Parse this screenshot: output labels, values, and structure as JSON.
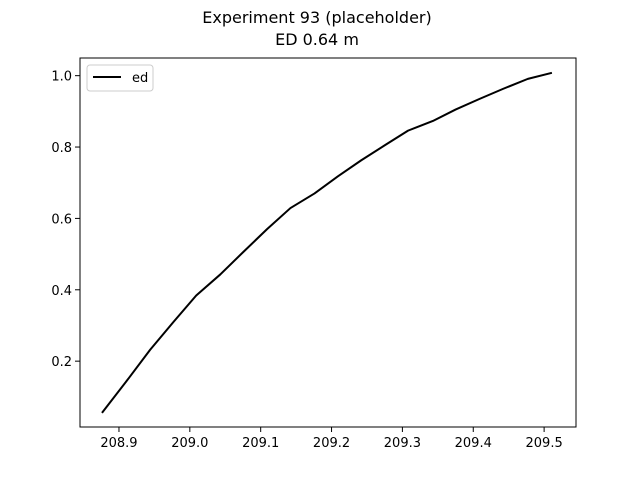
{
  "chart_data": {
    "type": "line",
    "title": "Experiment 93 (placeholder)",
    "subtitle": "ED 0.64 m",
    "xlabel": "",
    "ylabel": "",
    "xlim": [
      208.845,
      209.545
    ],
    "ylim": [
      0.0155,
      1.0495
    ],
    "xticks": [
      208.9,
      209.0,
      209.1,
      209.2,
      209.3,
      209.4,
      209.5
    ],
    "xtick_labels": [
      "208.9",
      "209.0",
      "209.1",
      "209.2",
      "209.3",
      "209.4",
      "209.5"
    ],
    "yticks": [
      0.2,
      0.4,
      0.6,
      0.8,
      1.0
    ],
    "ytick_labels": [
      "0.2",
      "0.4",
      "0.6",
      "0.8",
      "1.0"
    ],
    "grid": false,
    "legend_position": "top-left",
    "colors": {
      "line": "#000000",
      "axes": "#000000",
      "legend_border": "#cccccc"
    },
    "series": [
      {
        "name": "ed",
        "x": [
          208.876,
          208.911,
          208.944,
          208.977,
          209.009,
          209.043,
          209.076,
          209.109,
          209.142,
          209.176,
          209.209,
          209.242,
          209.276,
          209.308,
          209.343,
          209.375,
          209.409,
          209.442,
          209.477,
          209.511
        ],
        "y": [
          0.055,
          0.145,
          0.232,
          0.31,
          0.384,
          0.443,
          0.507,
          0.57,
          0.629,
          0.67,
          0.718,
          0.763,
          0.806,
          0.846,
          0.873,
          0.905,
          0.935,
          0.963,
          0.991,
          1.008
        ]
      }
    ]
  }
}
